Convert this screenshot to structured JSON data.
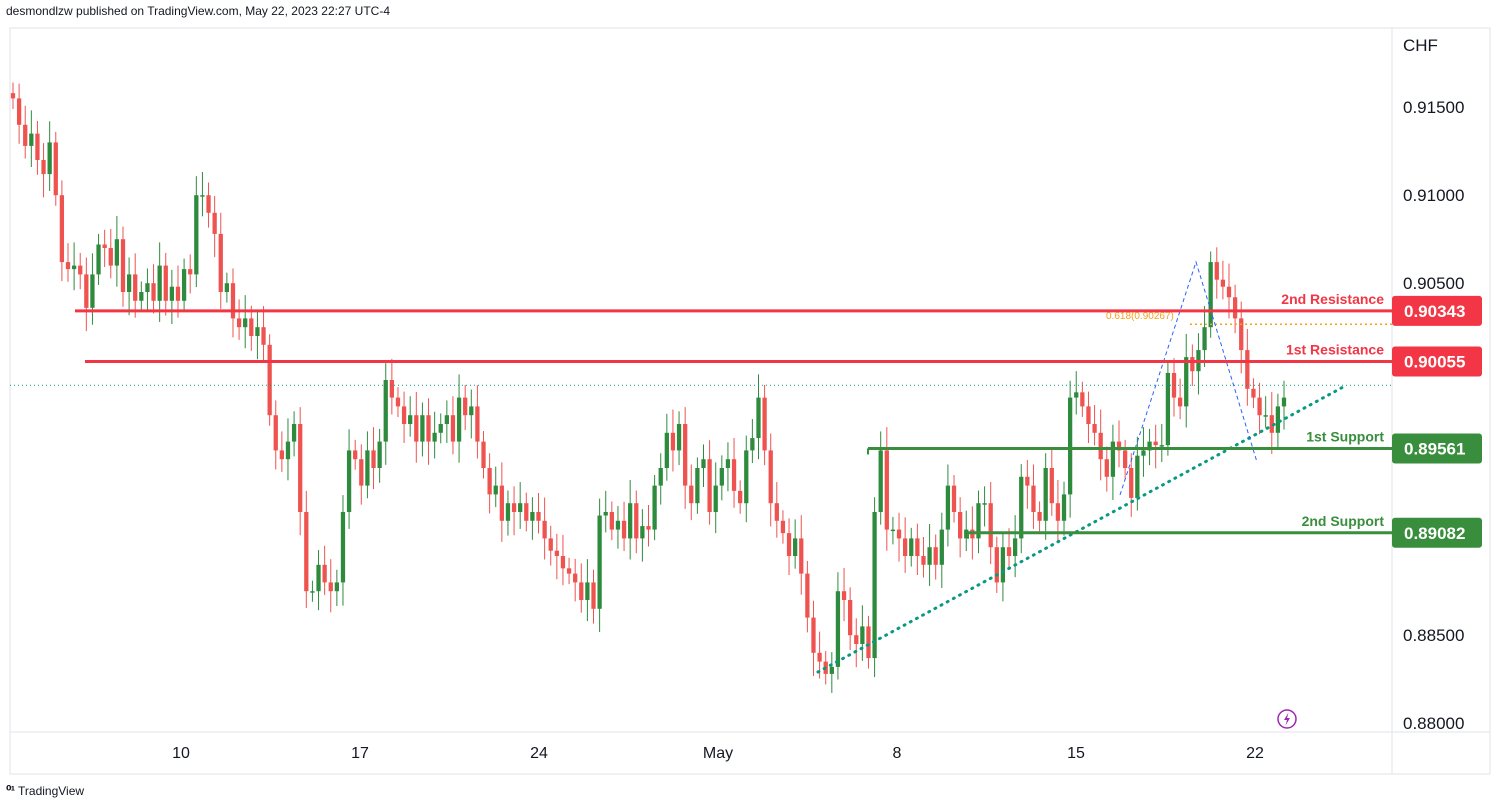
{
  "header": {
    "published": "desmondlzw published on TradingView.com, May 22, 2023 22:27 UTC-4"
  },
  "footer": {
    "brand": "TradingView",
    "logo": "tradingview-logo-icon"
  },
  "colors": {
    "up": "#26a69a",
    "up_fill": "#2e8b3e",
    "down": "#ef5350",
    "resistance": "#f23645",
    "support": "#388e3c",
    "fib": "#f7a21b",
    "trendline": "#089981",
    "zigzag": "#2962ff"
  },
  "chart_data": {
    "type": "candlestick",
    "currency_label": "CHF",
    "y_ticks": [
      "0.91500",
      "0.91000",
      "0.90500",
      "0.88500",
      "0.88000"
    ],
    "ylim": [
      0.8795,
      0.9195
    ],
    "x_ticks": [
      {
        "label": "10",
        "date": "2023-04-10"
      },
      {
        "label": "17",
        "date": "2023-04-17"
      },
      {
        "label": "24",
        "date": "2023-04-24"
      },
      {
        "label": "May",
        "date": "2023-05-01"
      },
      {
        "label": "8",
        "date": "2023-05-08"
      },
      {
        "label": "15",
        "date": "2023-05-15"
      },
      {
        "label": "22",
        "date": "2023-05-22"
      }
    ],
    "levels": [
      {
        "name": "2nd Resistance",
        "price": "0.90343",
        "value": 0.90343,
        "kind": "resistance"
      },
      {
        "name": "1st Resistance",
        "price": "0.90055",
        "value": 0.90055,
        "kind": "resistance"
      },
      {
        "name": "1st Support",
        "price": "0.89561",
        "value": 0.89561,
        "kind": "support"
      },
      {
        "name": "2nd Support",
        "price": "0.89082",
        "value": 0.89082,
        "kind": "support"
      }
    ],
    "fib_label": "0.618(0.90267)",
    "fib_value": 0.90267,
    "last_price_value": 0.8992,
    "series_close": [
      0.9155,
      0.914,
      0.9128,
      0.9135,
      0.912,
      0.9112,
      0.913,
      0.91,
      0.9062,
      0.9058,
      0.906,
      0.9055,
      0.9036,
      0.9055,
      0.9072,
      0.907,
      0.906,
      0.9075,
      0.9045,
      0.9055,
      0.904,
      0.9045,
      0.905,
      0.904,
      0.906,
      0.904,
      0.9048,
      0.904,
      0.9058,
      0.9055,
      0.91,
      0.91,
      0.909,
      0.9078,
      0.9045,
      0.905,
      0.903,
      0.9025,
      0.903,
      0.902,
      0.9025,
      0.9015,
      0.8975,
      0.8955,
      0.895,
      0.896,
      0.897,
      0.892,
      0.8875,
      0.8875,
      0.889,
      0.888,
      0.8875,
      0.888,
      0.892,
      0.8955,
      0.895,
      0.8935,
      0.8955,
      0.8945,
      0.896,
      0.8995,
      0.8985,
      0.898,
      0.897,
      0.8975,
      0.896,
      0.8975,
      0.896,
      0.8965,
      0.897,
      0.8975,
      0.896,
      0.8985,
      0.8975,
      0.898,
      0.896,
      0.8945,
      0.893,
      0.8935,
      0.8915,
      0.8925,
      0.892,
      0.8925,
      0.8915,
      0.892,
      0.8915,
      0.8905,
      0.8898,
      0.8895,
      0.8888,
      0.8885,
      0.888,
      0.887,
      0.888,
      0.8865,
      0.8918,
      0.892,
      0.891,
      0.8915,
      0.8905,
      0.8925,
      0.8905,
      0.8912,
      0.891,
      0.8935,
      0.8945,
      0.8965,
      0.8955,
      0.897,
      0.8935,
      0.8925,
      0.8945,
      0.895,
      0.892,
      0.8935,
      0.8945,
      0.895,
      0.8932,
      0.8925,
      0.8955,
      0.8962,
      0.8985,
      0.8955,
      0.8925,
      0.8915,
      0.8908,
      0.8895,
      0.8905,
      0.8885,
      0.886,
      0.884,
      0.8835,
      0.8828,
      0.8832,
      0.8875,
      0.887,
      0.885,
      0.8845,
      0.8855,
      0.8837,
      0.892,
      0.8955,
      0.891,
      0.891,
      0.8905,
      0.8895,
      0.8905,
      0.8895,
      0.889,
      0.89,
      0.889,
      0.891,
      0.8935,
      0.892,
      0.8905,
      0.891,
      0.8905,
      0.8925,
      0.8925,
      0.89,
      0.888,
      0.89,
      0.8895,
      0.8905,
      0.894,
      0.8935,
      0.892,
      0.8915,
      0.8945,
      0.8925,
      0.8915,
      0.893,
      0.8985,
      0.8988,
      0.898,
      0.897,
      0.8965,
      0.895,
      0.894,
      0.896,
      0.8955,
      0.8945,
      0.8928,
      0.8952,
      0.8955,
      0.896,
      0.8958,
      0.8958,
      0.8999,
      0.8985,
      0.898,
      0.9008,
      0.9,
      0.9012,
      0.9025,
      0.9062,
      0.9052,
      0.9048,
      0.9042,
      0.903,
      0.9012,
      0.899,
      0.8985,
      0.8975,
      0.8975,
      0.8965,
      0.898,
      0.8985
    ]
  }
}
